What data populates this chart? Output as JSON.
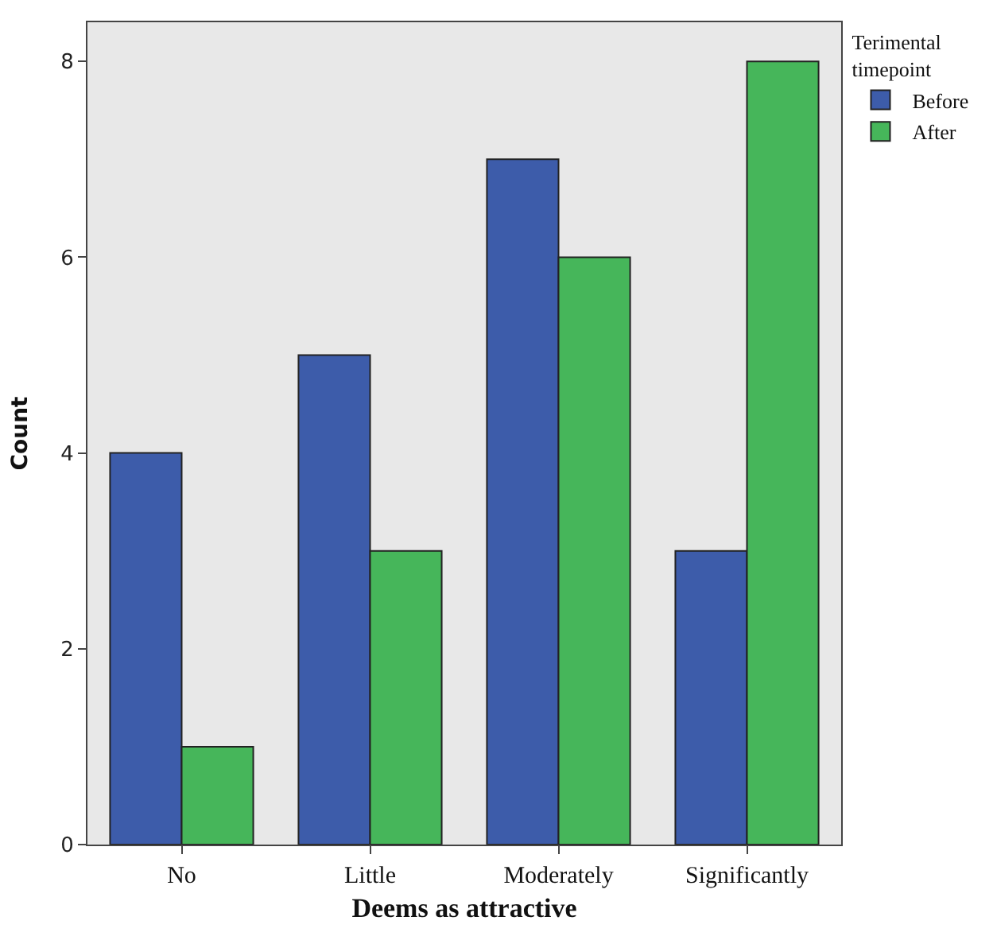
{
  "chart_data": {
    "type": "bar",
    "xlabel": "Deems as attractive",
    "ylabel": "Count",
    "legend_title": "Terimental timepoint",
    "categories": [
      "No",
      "Little",
      "Moderately",
      "Significantly"
    ],
    "series": [
      {
        "name": "Before",
        "color": "#3d5caa",
        "values": [
          4,
          5,
          7,
          3
        ]
      },
      {
        "name": "After",
        "color": "#46b65a",
        "values": [
          1,
          3,
          6,
          8
        ]
      }
    ],
    "ylim": [
      0,
      8.4
    ],
    "yticks": [
      0,
      2,
      4,
      6,
      8
    ],
    "grid": false,
    "legend": "top right"
  }
}
